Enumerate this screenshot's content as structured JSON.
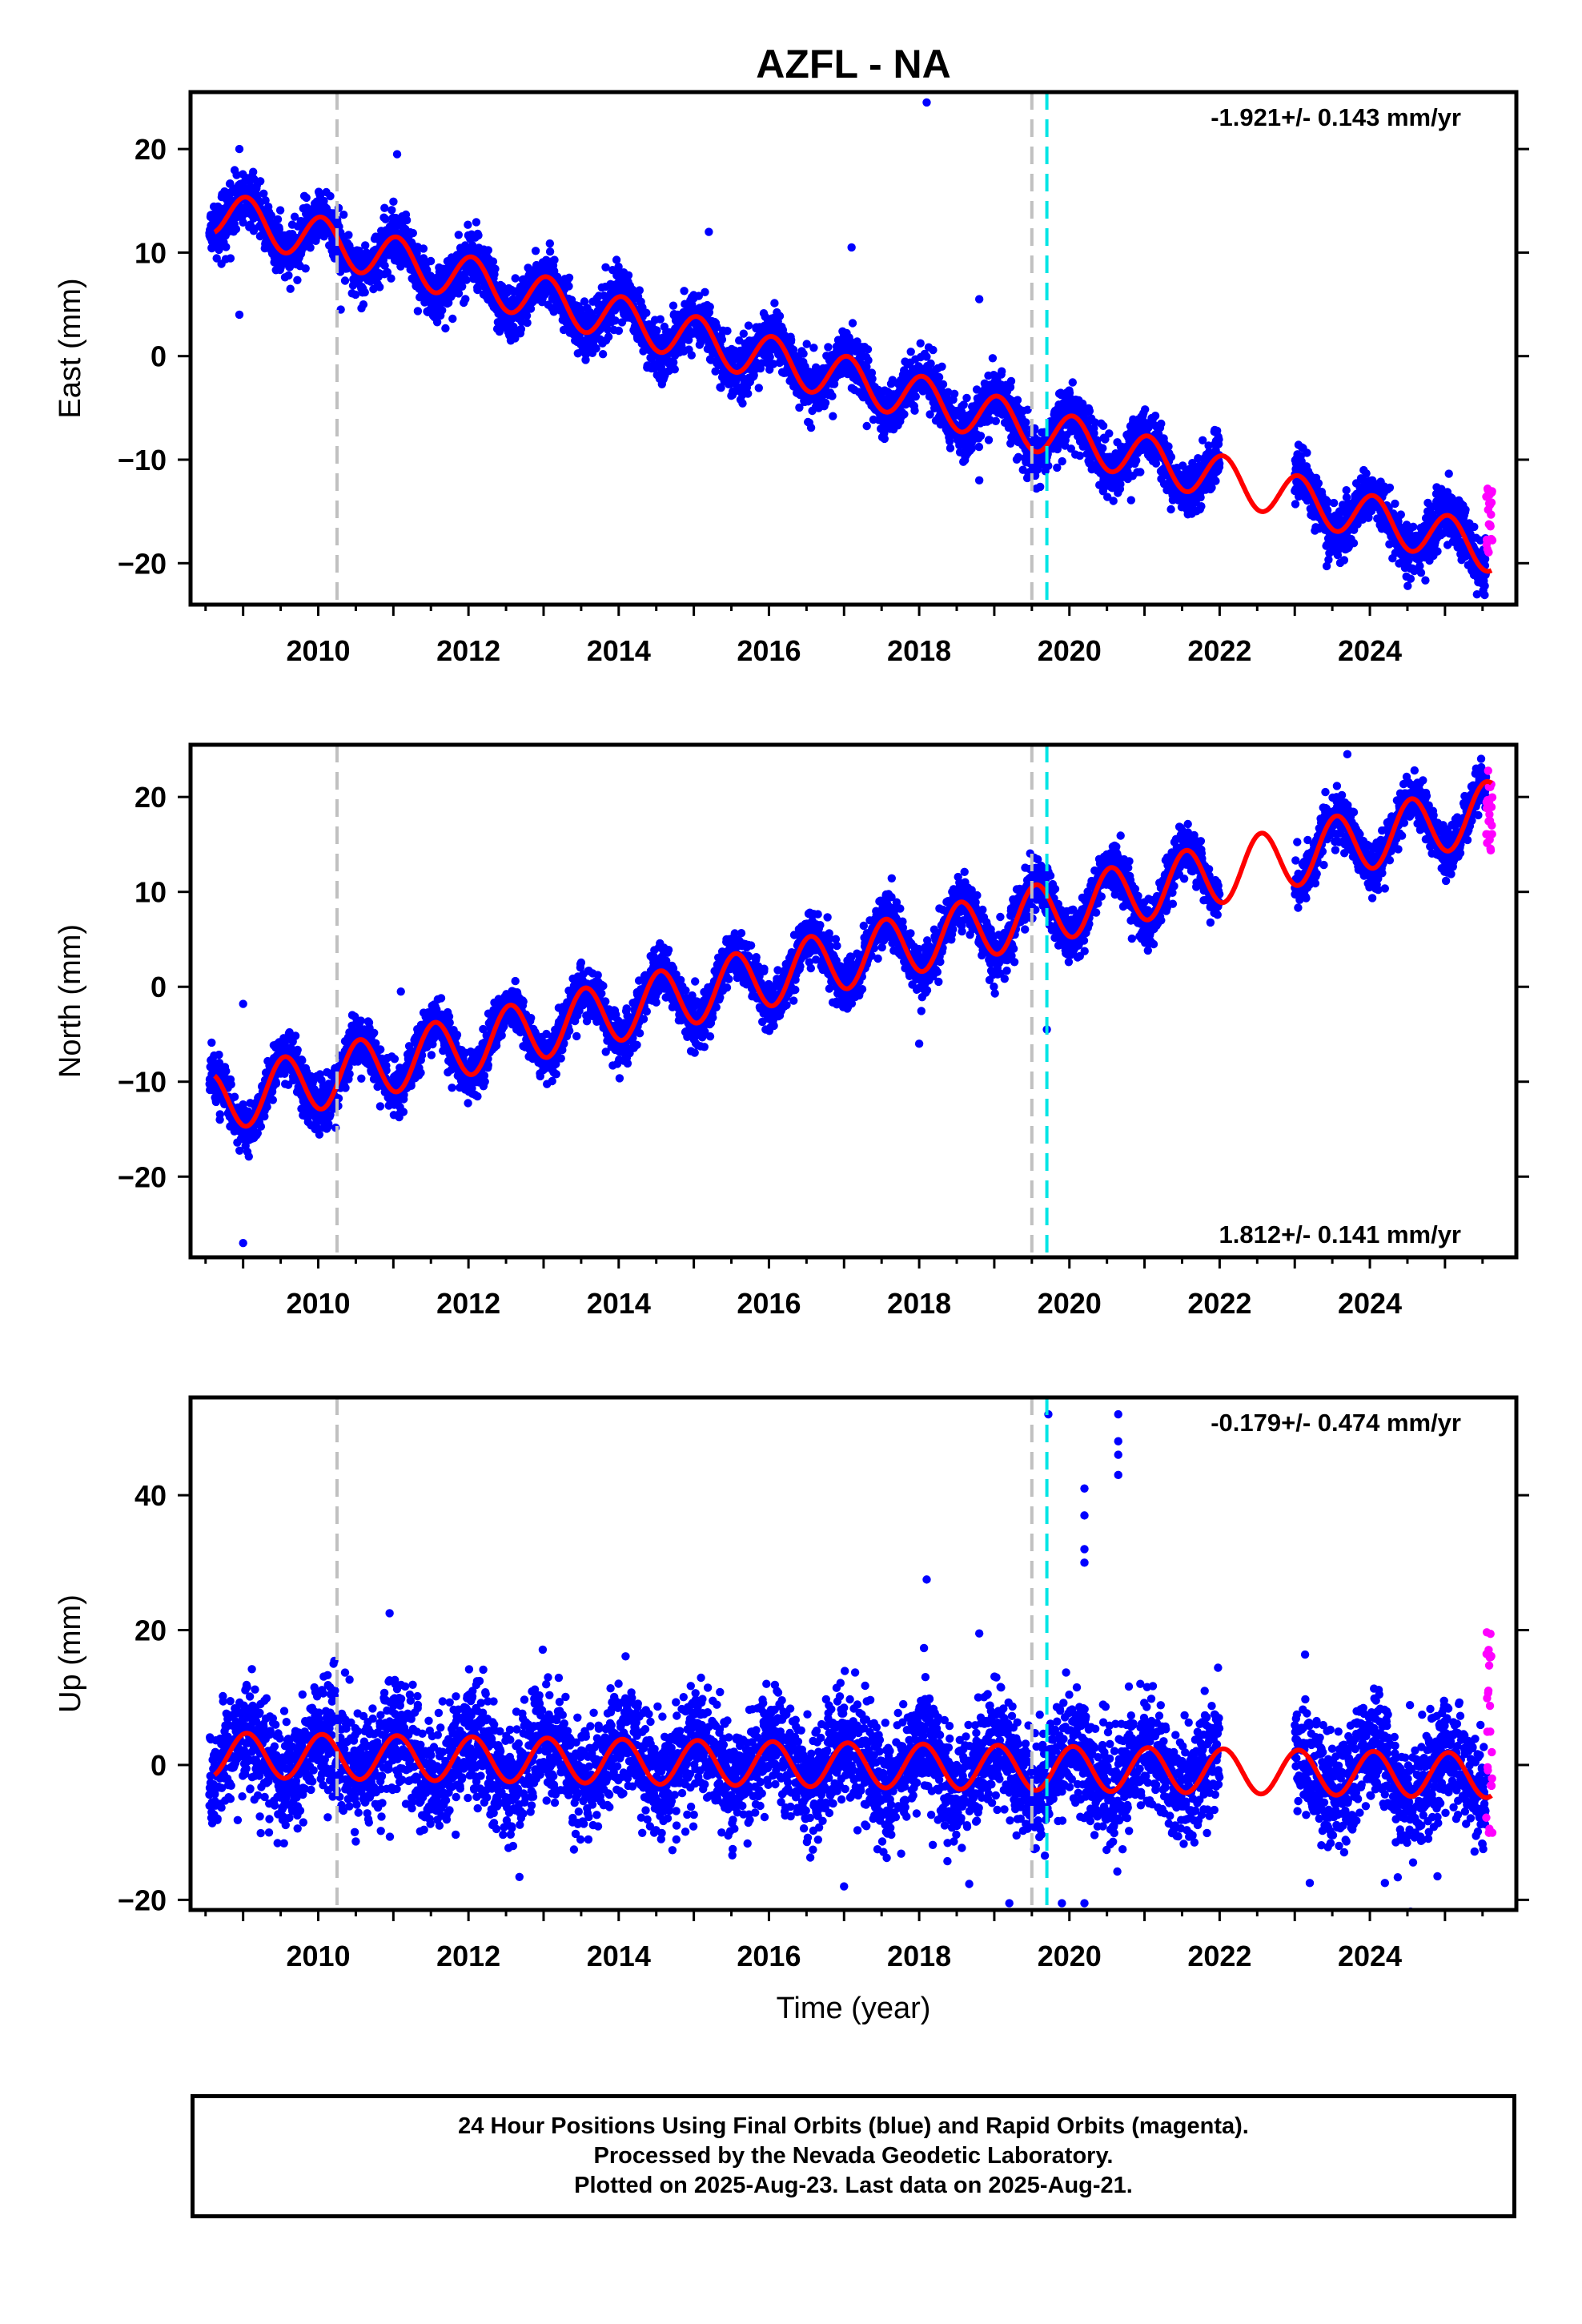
{
  "title": "AZFL - NA",
  "colors": {
    "final_orbits": "#0000ff",
    "rapid_orbits": "#ff00ff",
    "model": "#ff0000",
    "equipment_change": "#c0c0c0",
    "earthquake": "#00e5e5"
  },
  "footer": {
    "line1": "24 Hour Positions Using Final Orbits (blue) and Rapid Orbits (magenta).",
    "line2": "Processed by the Nevada Geodetic Laboratory.",
    "line3": "Plotted on 2025-Aug-23. Last data on 2025-Aug-21."
  },
  "chart_data": [
    {
      "type": "scatter",
      "panel": "east",
      "ylabel": "East (mm)",
      "xlabel": "",
      "xlim": [
        2008.3,
        2025.95
      ],
      "ylim": [
        -24,
        25.5
      ],
      "xticks": [
        2010,
        2012,
        2014,
        2016,
        2018,
        2020,
        2022,
        2024
      ],
      "yticks": [
        -20,
        -10,
        0,
        10,
        20
      ],
      "rate_label": "-1.921+/- 0.143 mm/yr",
      "rate_label_position": "top-right",
      "vlines_gray": [
        2010.25,
        2019.5
      ],
      "vlines_cyan": [
        2019.7
      ],
      "model": {
        "offset": 14.0,
        "rate": -1.921,
        "annual_amplitude": 2.2,
        "annual_phase_year": 0.05
      },
      "rapid_orbit_points": {
        "x_start": 2025.55,
        "x_end": 2025.63,
        "y_min": -19,
        "y_max": -12.8
      },
      "gap_years": [
        [
          2022.0,
          2023.0
        ]
      ],
      "outliers": [
        [
          2018.1,
          24.5
        ],
        [
          2008.95,
          4.0
        ],
        [
          2008.95,
          20.0
        ],
        [
          2011.05,
          19.5
        ],
        [
          2015.2,
          12.0
        ],
        [
          2017.1,
          10.5
        ],
        [
          2018.8,
          5.5
        ],
        [
          2018.8,
          -12.0
        ],
        [
          2010.3,
          4.5
        ]
      ]
    },
    {
      "type": "scatter",
      "panel": "north",
      "ylabel": "North (mm)",
      "xlabel": "",
      "xlim": [
        2008.3,
        2025.95
      ],
      "ylim": [
        -28.5,
        25.5
      ],
      "xticks": [
        2010,
        2012,
        2014,
        2016,
        2018,
        2020,
        2022,
        2024
      ],
      "yticks": [
        -20,
        -10,
        0,
        10,
        20
      ],
      "rate_label": "1.812+/- 0.141 mm/yr",
      "rate_label_position": "bottom-right",
      "vlines_gray": [
        2010.25,
        2019.5
      ],
      "vlines_cyan": [
        2019.7
      ],
      "model": {
        "offset": -12.3,
        "rate": 1.812,
        "annual_amplitude": 3.2,
        "annual_phase_year": 0.55
      },
      "rapid_orbit_points": {
        "x_start": 2025.55,
        "x_end": 2025.63,
        "y_min": 14,
        "y_max": 23
      },
      "gap_years": [
        [
          2022.0,
          2023.0
        ]
      ],
      "outliers": [
        [
          2009.0,
          -27.0
        ],
        [
          2009.0,
          -1.8
        ],
        [
          2011.1,
          -0.5
        ],
        [
          2018.0,
          -6.0
        ],
        [
          2019.7,
          -4.5
        ],
        [
          2023.7,
          24.5
        ]
      ]
    },
    {
      "type": "scatter",
      "panel": "up",
      "ylabel": "Up (mm)",
      "xlabel": "Time (year)",
      "xlim": [
        2008.3,
        2025.95
      ],
      "ylim": [
        -21.5,
        54.5
      ],
      "xticks": [
        2010,
        2012,
        2014,
        2016,
        2018,
        2020,
        2022,
        2024
      ],
      "yticks": [
        -20,
        0,
        20,
        40
      ],
      "rate_label": "-0.179+/- 0.474 mm/yr",
      "rate_label_position": "top-right",
      "vlines_gray": [
        2010.25,
        2019.5
      ],
      "vlines_cyan": [
        2019.7
      ],
      "model": {
        "offset": 1.5,
        "rate": -0.179,
        "annual_amplitude": 3.3,
        "annual_phase_year": 0.05
      },
      "rapid_orbit_points": {
        "x_start": 2025.55,
        "x_end": 2025.63,
        "y_min": -10.5,
        "y_max": 22
      },
      "gap_years": [
        [
          2022.0,
          2023.0
        ]
      ],
      "outliers": [
        [
          2019.72,
          52
        ],
        [
          2020.65,
          52
        ],
        [
          2020.65,
          48
        ],
        [
          2020.65,
          46
        ],
        [
          2020.65,
          43
        ],
        [
          2020.2,
          41
        ],
        [
          2020.2,
          37
        ],
        [
          2020.2,
          32
        ],
        [
          2020.2,
          30
        ],
        [
          2018.1,
          27.5
        ],
        [
          2018.8,
          19.5
        ],
        [
          2010.95,
          22.5
        ],
        [
          2017.0,
          -18
        ],
        [
          2019.2,
          -20.5
        ],
        [
          2020.2,
          -20.5
        ],
        [
          2019.9,
          -20.5
        ],
        [
          2023.2,
          -17.5
        ],
        [
          2024.2,
          -17.5
        ],
        [
          2024.9,
          -16.5
        ]
      ]
    }
  ]
}
